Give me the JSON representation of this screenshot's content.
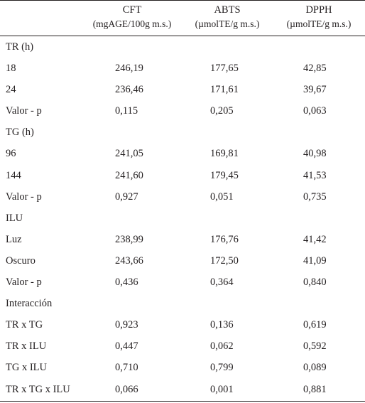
{
  "header": {
    "cft": {
      "name": "CFT",
      "unit": "(mgAGE/100g m.s.)"
    },
    "abts": {
      "name": "ABTS",
      "unit": "(µmolTE/g m.s.)"
    },
    "dpph": {
      "name": "DPPH",
      "unit": "(µmolTE/g m.s.)"
    }
  },
  "rows": [
    {
      "label": "TR (h)",
      "cft": "",
      "abts": "",
      "dpph": ""
    },
    {
      "label": "18",
      "cft": "246,19",
      "abts": "177,65",
      "dpph": "42,85"
    },
    {
      "label": "24",
      "cft": "236,46",
      "abts": "171,61",
      "dpph": "39,67"
    },
    {
      "label": "Valor - p",
      "cft": "0,115",
      "abts": "0,205",
      "dpph": "0,063"
    },
    {
      "label": "TG (h)",
      "cft": "",
      "abts": "",
      "dpph": ""
    },
    {
      "label": "96",
      "cft": "241,05",
      "abts": "169,81",
      "dpph": "40,98"
    },
    {
      "label": "144",
      "cft": "241,60",
      "abts": "179,45",
      "dpph": "41,53"
    },
    {
      "label": "Valor - p",
      "cft": "0,927",
      "abts": "0,051",
      "dpph": "0,735"
    },
    {
      "label": "ILU",
      "cft": "",
      "abts": "",
      "dpph": ""
    },
    {
      "label": "Luz",
      "cft": "238,99",
      "abts": "176,76",
      "dpph": "41,42"
    },
    {
      "label": "Oscuro",
      "cft": "243,66",
      "abts": "172,50",
      "dpph": "41,09"
    },
    {
      "label": "Valor - p",
      "cft": "0,436",
      "abts": "0,364",
      "dpph": "0,840"
    },
    {
      "label": "Interacción",
      "cft": "",
      "abts": "",
      "dpph": ""
    },
    {
      "label": "TR x TG",
      "cft": "0,923",
      "abts": "0,136",
      "dpph": "0,619"
    },
    {
      "label": "TR x ILU",
      "cft": "0,447",
      "abts": "0,062",
      "dpph": "0,592"
    },
    {
      "label": "TG x ILU",
      "cft": "0,710",
      "abts": "0,799",
      "dpph": "0,089"
    },
    {
      "label": "TR x TG x ILU",
      "cft": "0,066",
      "abts": "0,001",
      "dpph": "0,881"
    }
  ]
}
